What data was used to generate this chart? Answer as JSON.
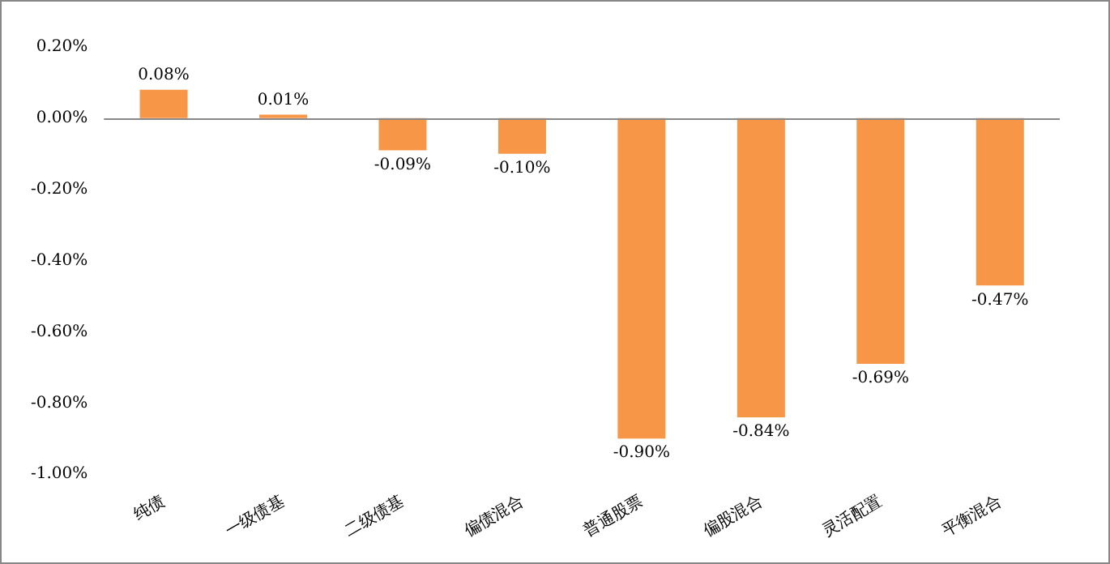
{
  "chart_data": {
    "type": "bar",
    "categories": [
      "纯债",
      "一级债基",
      "二级债基",
      "偏债混合",
      "普通股票",
      "偏股混合",
      "灵活配置",
      "平衡混合"
    ],
    "values": [
      0.08,
      0.01,
      -0.09,
      -0.1,
      -0.9,
      -0.84,
      -0.69,
      -0.47
    ],
    "value_labels": [
      "0.08%",
      "0.01%",
      "-0.09%",
      "-0.10%",
      "-0.90%",
      "-0.84%",
      "-0.69%",
      "-0.47%"
    ],
    "color": "#f79646",
    "ylim": [
      -1.0,
      0.2
    ],
    "yticks": [
      {
        "value": 0.2,
        "label": "0.20%"
      },
      {
        "value": 0,
        "label": "0.00%"
      },
      {
        "value": -0.2,
        "label": "-0.20%"
      },
      {
        "value": -0.4,
        "label": "-0.40%"
      },
      {
        "value": -0.6,
        "label": "-0.60%"
      },
      {
        "value": -0.8,
        "label": "-0.80%"
      },
      {
        "value": -1.0,
        "label": "-1.00%"
      }
    ],
    "legend": false
  }
}
